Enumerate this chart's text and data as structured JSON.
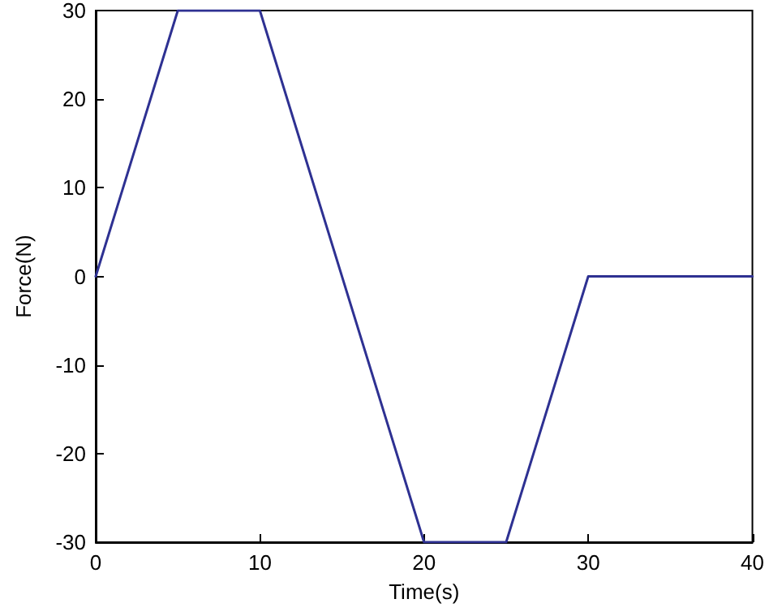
{
  "chart_data": {
    "type": "line",
    "xlabel": "Time(s)",
    "ylabel": "Force(N)",
    "x": [
      0,
      5,
      10,
      20,
      25,
      30,
      40
    ],
    "series": [
      {
        "color": "#2e3192",
        "values": [
          0,
          30,
          30,
          -30,
          -30,
          0,
          0
        ]
      }
    ],
    "xlim": [
      0,
      40
    ],
    "xticks": [
      0,
      10,
      20,
      30,
      40
    ],
    "ylim": [
      -30,
      30
    ],
    "yticks": [
      -30,
      -20,
      -10,
      0,
      10,
      20,
      30
    ],
    "grid": false,
    "marker": "none",
    "line_style": "solid"
  }
}
